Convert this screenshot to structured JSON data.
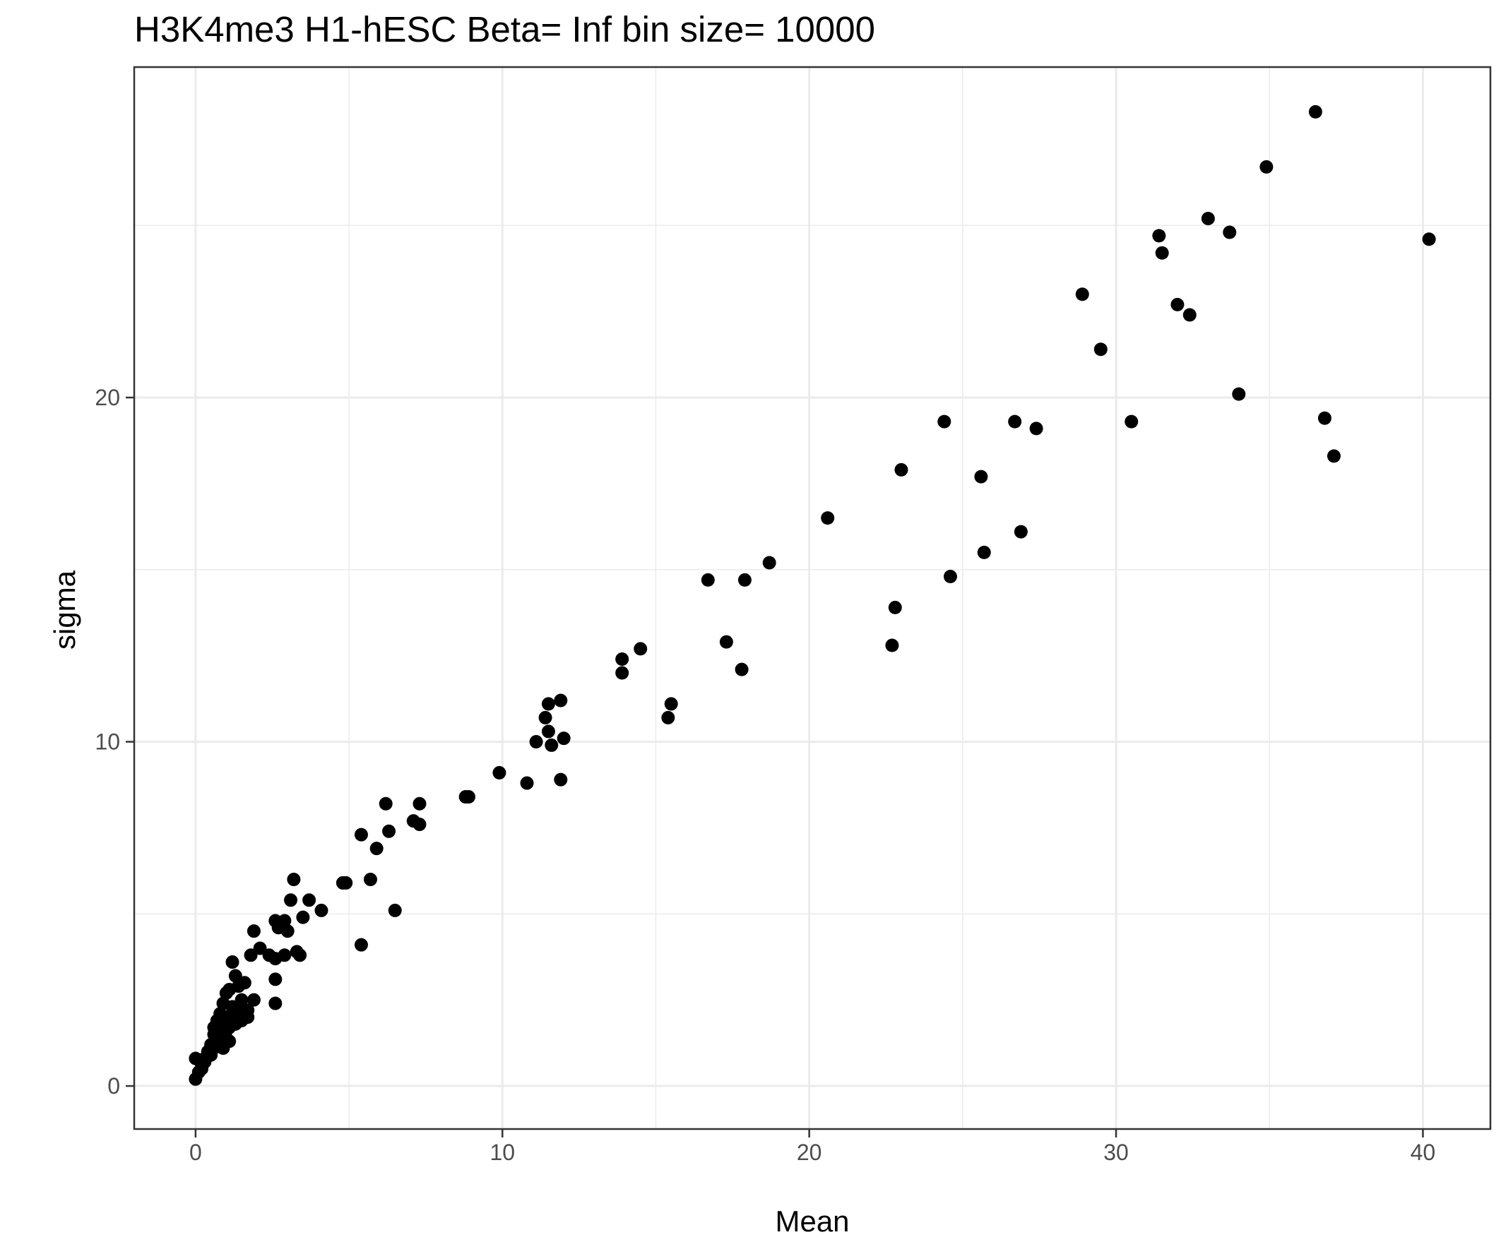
{
  "chart_data": {
    "type": "scatter",
    "title": "H3K4me3 H1-hESC  Beta=  Inf  bin size=  10000",
    "xlabel": "Mean",
    "ylabel": "sigma",
    "xlim": [
      -2,
      42.2
    ],
    "ylim": [
      -1.25,
      29.6
    ],
    "x_ticks": [
      0,
      10,
      20,
      30,
      40
    ],
    "y_ticks": [
      0,
      10,
      20
    ],
    "x_tick_labels": [
      "0",
      "10",
      "20",
      "30",
      "40"
    ],
    "y_tick_labels": [
      "0",
      "10",
      "20"
    ],
    "grid": true,
    "point_color": "#000000",
    "series": [
      {
        "x": [
          36.5,
          34.9,
          33.0,
          31.4,
          31.5,
          33.7,
          40.2,
          28.9,
          32.0,
          32.4,
          29.5,
          34.0,
          36.8,
          37.1,
          30.5,
          24.4,
          26.7,
          27.4,
          23.0,
          25.6,
          20.6,
          26.9,
          25.7,
          24.6,
          22.8,
          22.7,
          16.7,
          17.9,
          18.7,
          17.3,
          17.8,
          13.9,
          13.9,
          14.5,
          15.5,
          15.4,
          11.5,
          11.9,
          11.4,
          11.5,
          11.1,
          11.6,
          12.0,
          11.9,
          9.9,
          10.8,
          8.8,
          8.9,
          6.2,
          7.3,
          7.1,
          7.3,
          5.4,
          5.9,
          6.3,
          3.2,
          4.8,
          4.9,
          5.7,
          3.1,
          3.7,
          4.1,
          3.5,
          2.6,
          2.8,
          2.9,
          2.7,
          3.0,
          6.5,
          5.4,
          1.9,
          3.3,
          3.4,
          2.9,
          2.6,
          2.1,
          2.4,
          2.6,
          1.8,
          1.2,
          2.6,
          1.9,
          1.7,
          1.3,
          1.1,
          0.8,
          1.6,
          1.4,
          1.0,
          1.5,
          0.9,
          0.7,
          1.2,
          1.0,
          0.8,
          0.6,
          1.3,
          1.1,
          0.9,
          0.7,
          0.5,
          0.4,
          0.3,
          1.4,
          1.2,
          0.6,
          0.5,
          0.3,
          0.2,
          0.1,
          0.0,
          0.0,
          0.2,
          0.4,
          0.8,
          1.0,
          1.5,
          1.3,
          1.7,
          1.1,
          0.6,
          0.9
        ],
        "y": [
          28.3,
          26.7,
          25.2,
          24.7,
          24.2,
          24.8,
          24.6,
          23.0,
          22.7,
          22.4,
          21.4,
          20.1,
          19.4,
          18.3,
          19.3,
          19.3,
          19.3,
          19.1,
          17.9,
          17.7,
          16.5,
          16.1,
          15.5,
          14.8,
          13.9,
          12.8,
          14.7,
          14.7,
          15.2,
          12.9,
          12.1,
          12.4,
          12.0,
          12.7,
          11.1,
          10.7,
          11.1,
          11.2,
          10.7,
          10.3,
          10.0,
          9.9,
          10.1,
          8.9,
          9.1,
          8.8,
          8.4,
          8.4,
          8.2,
          8.2,
          7.7,
          7.6,
          7.3,
          6.9,
          7.4,
          6.0,
          5.9,
          5.9,
          6.0,
          5.4,
          5.4,
          5.1,
          4.9,
          4.8,
          4.7,
          4.8,
          4.6,
          4.5,
          5.1,
          4.1,
          4.5,
          3.9,
          3.8,
          3.8,
          3.7,
          4.0,
          3.8,
          3.1,
          3.8,
          3.6,
          2.4,
          2.5,
          2.0,
          3.2,
          2.8,
          2.1,
          3.0,
          2.9,
          2.7,
          2.5,
          2.4,
          1.9,
          2.3,
          2.0,
          1.8,
          1.5,
          1.9,
          1.7,
          1.5,
          1.3,
          1.2,
          1.0,
          0.8,
          2.2,
          2.1,
          1.1,
          0.9,
          0.7,
          0.5,
          0.4,
          0.2,
          0.8,
          0.6,
          0.9,
          1.4,
          1.6,
          1.9,
          1.8,
          2.2,
          1.3,
          1.7,
          1.1
        ]
      }
    ]
  }
}
